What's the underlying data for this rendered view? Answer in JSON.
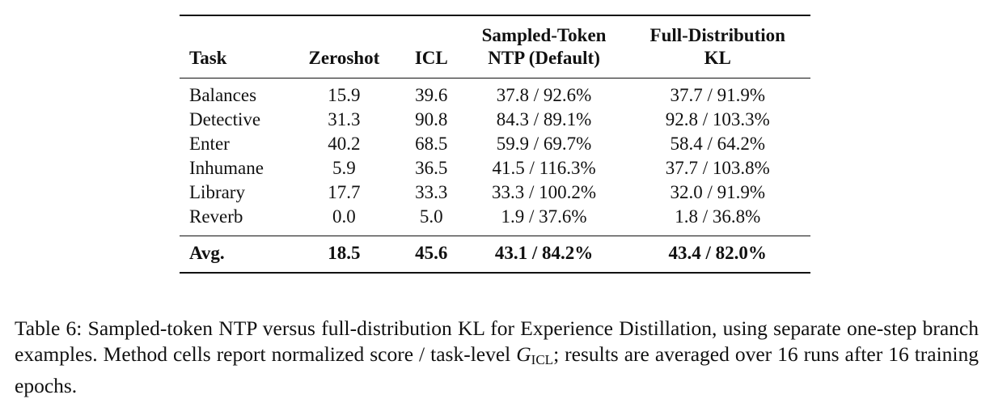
{
  "table": {
    "headers": {
      "task": "Task",
      "zeroshot": "Zeroshot",
      "icl": "ICL",
      "ntp_line1": "Sampled-Token",
      "ntp_line2": "NTP (Default)",
      "kl_line1": "Full-Distribution",
      "kl_line2": "KL"
    },
    "rows": [
      {
        "task": "Balances",
        "zeroshot": "15.9",
        "icl": "39.6",
        "ntp": "37.8 / 92.6%",
        "kl": "37.7 / 91.9%"
      },
      {
        "task": "Detective",
        "zeroshot": "31.3",
        "icl": "90.8",
        "ntp": "84.3 / 89.1%",
        "kl": "92.8 / 103.3%"
      },
      {
        "task": "Enter",
        "zeroshot": "40.2",
        "icl": "68.5",
        "ntp": "59.9 / 69.7%",
        "kl": "58.4 / 64.2%"
      },
      {
        "task": "Inhumane",
        "zeroshot": "5.9",
        "icl": "36.5",
        "ntp": "41.5 / 116.3%",
        "kl": "37.7 / 103.8%"
      },
      {
        "task": "Library",
        "zeroshot": "17.7",
        "icl": "33.3",
        "ntp": "33.3 / 100.2%",
        "kl": "32.0 / 91.9%"
      },
      {
        "task": "Reverb",
        "zeroshot": "0.0",
        "icl": "5.0",
        "ntp": "1.9 / 37.6%",
        "kl": "1.8 / 36.8%"
      }
    ],
    "avg": {
      "task": "Avg.",
      "zeroshot": "18.5",
      "icl": "45.6",
      "ntp": "43.1 / 84.2%",
      "kl": "43.4 / 82.0%"
    }
  },
  "caption": {
    "prefix": "Table 6: Sampled-token NTP versus full-distribution KL for Experience Distillation, using separate one-step branch examples. Method cells report normalized score / task-level ",
    "math_var": "G",
    "math_sub": "ICL",
    "suffix": "; results are averaged over 16 runs after 16 training epochs."
  }
}
